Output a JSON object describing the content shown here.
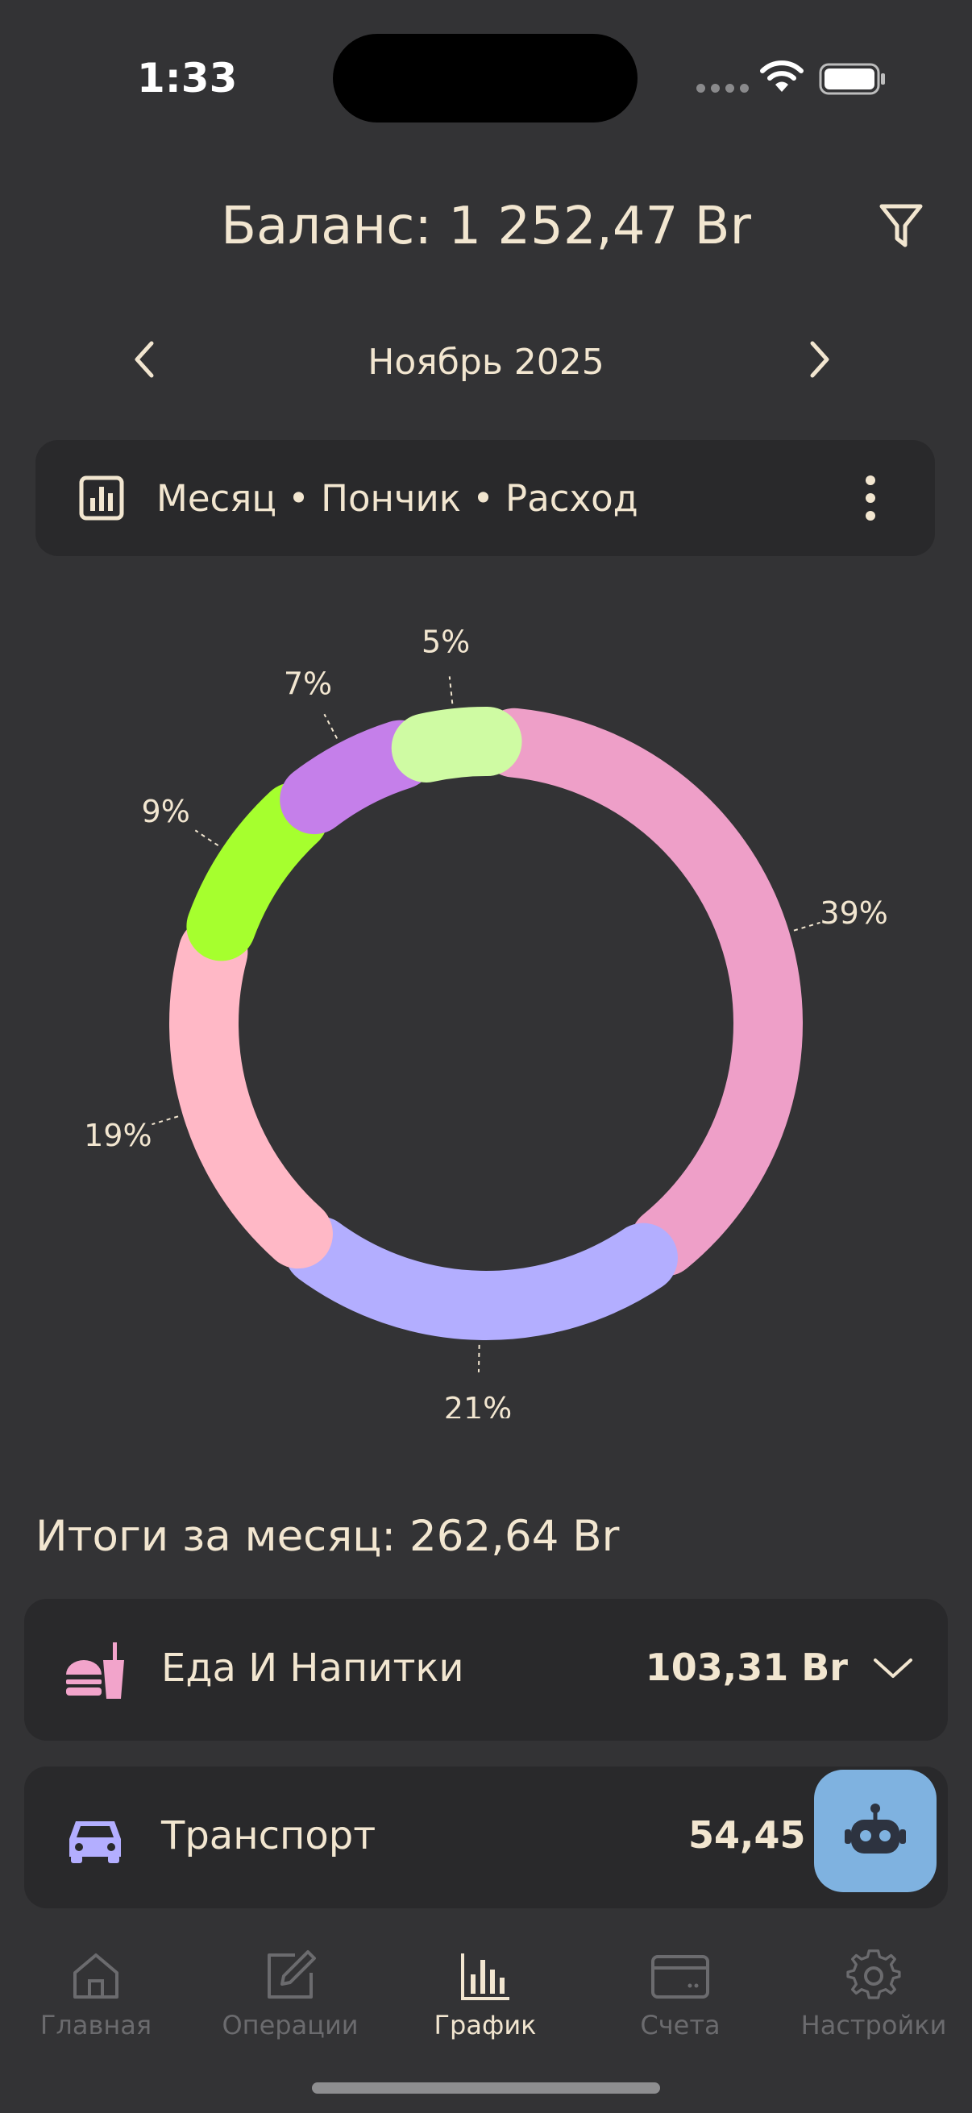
{
  "status_bar": {
    "time": "1:33",
    "icons": [
      "signal-icon",
      "wifi-icon",
      "battery-icon"
    ]
  },
  "header": {
    "balance": "Баланс: 1 252,47 Br",
    "filter_icon": "filter-icon",
    "month": "Ноябрь 2025"
  },
  "mode_bar": {
    "text": "Месяц • Пончик • Расход",
    "icon": "bar-chart-icon",
    "menu_icon": "more-vertical-icon"
  },
  "chart_data": {
    "type": "pie",
    "variant": "donut",
    "slices": [
      {
        "label": "39%",
        "value": 39,
        "color": "#EE9FC8"
      },
      {
        "label": "21%",
        "value": 21,
        "color": "#B3AEFF"
      },
      {
        "label": "19%",
        "value": 19,
        "color": "#FFB8C6"
      },
      {
        "label": "9%",
        "value": 9,
        "color": "#A6FF2E"
      },
      {
        "label": "7%",
        "value": 7,
        "color": "#C57FEA"
      },
      {
        "label": "5%",
        "value": 5,
        "color": "#CFFBA3"
      }
    ]
  },
  "summary": {
    "title": "Итоги за месяц: 262,64 Br",
    "categories": [
      {
        "name": "Еда И Напитки",
        "amount": "103,31 Br",
        "icon": "food-drink-icon",
        "color": "#F2A4CB"
      },
      {
        "name": "Транспорт",
        "amount": "54,45 Br",
        "icon": "car-icon",
        "color": "#B3AEFF"
      }
    ]
  },
  "fab": {
    "icon": "robot-icon"
  },
  "tabs": [
    {
      "label": "Главная",
      "icon": "home-icon",
      "active": false
    },
    {
      "label": "Операции",
      "icon": "edit-icon",
      "active": false
    },
    {
      "label": "График",
      "icon": "chart-icon",
      "active": true
    },
    {
      "label": "Счета",
      "icon": "wallet-icon",
      "active": false
    },
    {
      "label": "Настройки",
      "icon": "settings-icon",
      "active": false
    }
  ]
}
